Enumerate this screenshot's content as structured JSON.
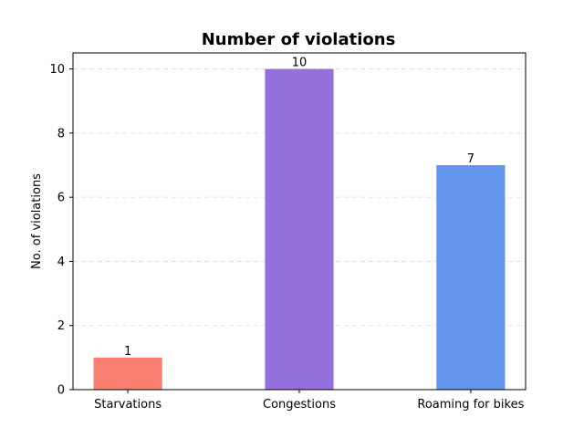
{
  "chart_data": {
    "type": "bar",
    "title": "Number of violations",
    "xlabel": "",
    "ylabel": "No. of violations",
    "categories": [
      "Starvations",
      "Congestions",
      "Roaming for bikes"
    ],
    "values": [
      1,
      10,
      7
    ],
    "colors": [
      "#fa8072",
      "#9370db",
      "#6495ed"
    ],
    "ylim": [
      0,
      10.5
    ],
    "yticks": [
      0,
      2,
      4,
      6,
      8,
      10
    ],
    "grid": "y-dashed",
    "data_labels": true
  }
}
